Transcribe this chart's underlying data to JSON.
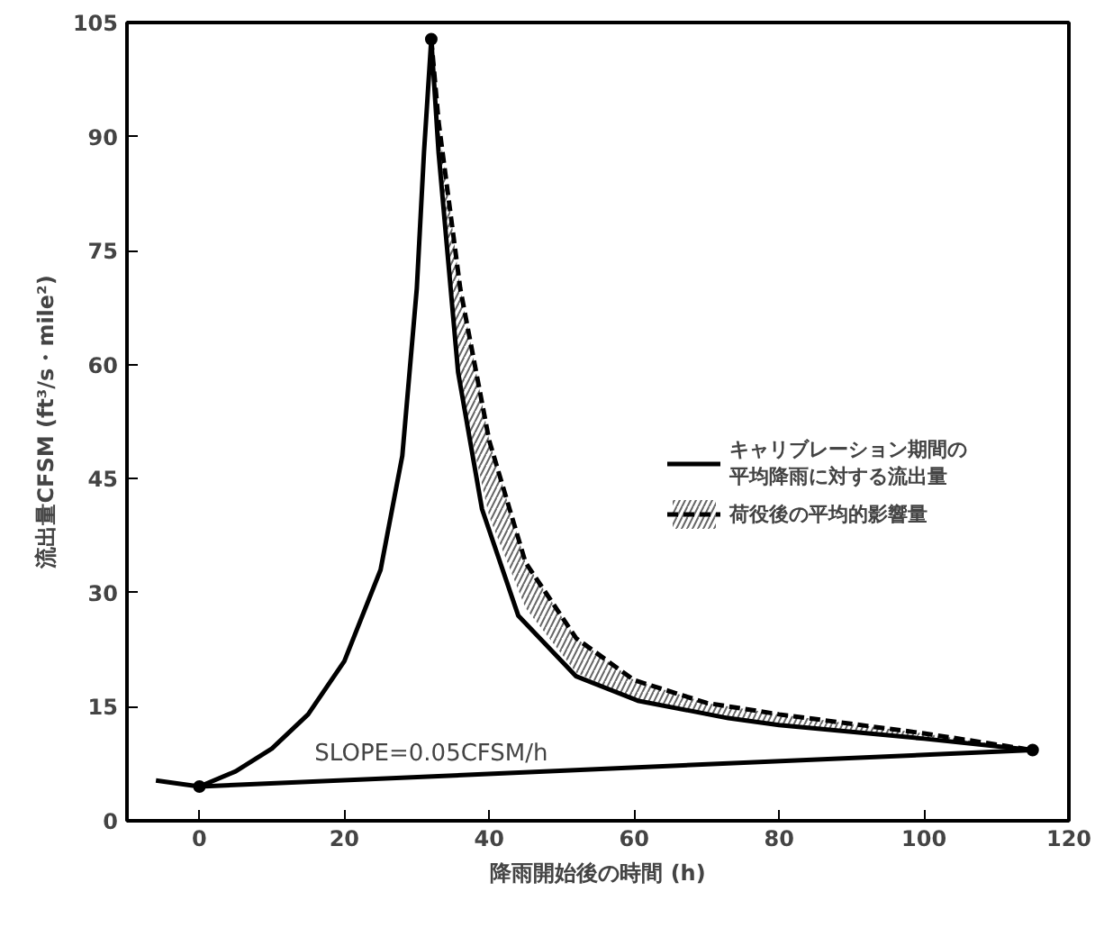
{
  "chart_data": {
    "type": "line",
    "xlabel": "降雨開始後の時間 (h)",
    "ylabel": "流出量CFSM (ft³/s・mile²)",
    "xlim": [
      -10,
      120
    ],
    "xticks": [
      0,
      20,
      40,
      60,
      80,
      100,
      120
    ],
    "ylim": [
      0,
      105
    ],
    "yticks": [
      0,
      15,
      30,
      45,
      60,
      75,
      90,
      105
    ],
    "grid": false,
    "legend": "right",
    "marker": "none",
    "line_style": "solid",
    "annotations": [
      {
        "text": "SLOPE=0.05CFSM/h",
        "x": 32,
        "y": 7
      }
    ],
    "series": [
      {
        "name": "キャリブレーション期間の平均降雨に対する流出量",
        "color": "#000000",
        "x": [
          -6,
          0,
          5,
          10,
          15,
          20,
          25,
          28,
          30,
          31,
          32,
          33,
          35.7,
          39,
          44,
          52,
          60.5,
          73,
          80,
          100,
          115
        ],
        "values": [
          5.3,
          4.5,
          6.5,
          9.5,
          14,
          21,
          33,
          48,
          70,
          88,
          102.8,
          88,
          59,
          41,
          27,
          19,
          15.8,
          13.5,
          12.6,
          10.8,
          9.3
        ]
      },
      {
        "name": "荷役後の平均的影響量",
        "type": "line",
        "color": "#000000",
        "line_style": "dashed",
        "x": [
          32,
          33,
          36,
          40,
          45,
          52,
          60,
          70,
          80,
          100,
          115
        ],
        "values": [
          102.8,
          92,
          70,
          50,
          34,
          24,
          18.5,
          15.5,
          14,
          11.5,
          9.3
        ],
        "upper": [
          102.8,
          92,
          70,
          50,
          34,
          24,
          18.5,
          15.5,
          14,
          11.5,
          9.3
        ],
        "lower": [
          102.8,
          88,
          57,
          40,
          28,
          19.5,
          16,
          13.8,
          12.6,
          10.8,
          9.3
        ]
      },
      {
        "type": "line",
        "color": "#000000",
        "x": [
          0,
          115
        ],
        "values": [
          4.5,
          9.3
        ]
      },
      {
        "type": "scatter",
        "color": "#000000",
        "marker": "circle",
        "x": [
          0,
          32,
          115
        ],
        "values": [
          4.5,
          102.8,
          9.3
        ]
      }
    ]
  }
}
